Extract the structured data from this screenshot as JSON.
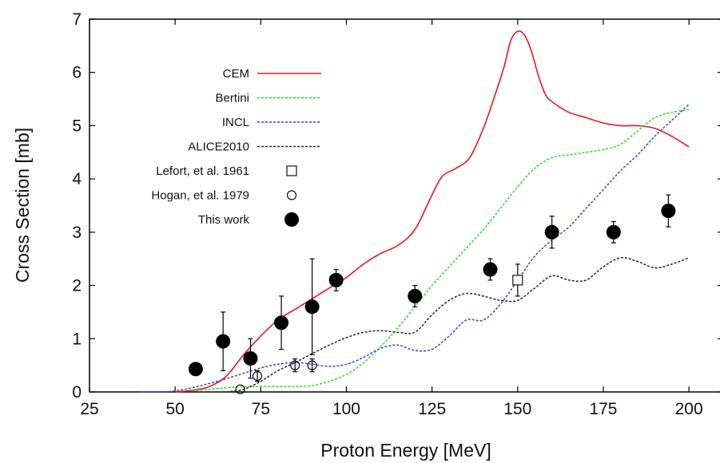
{
  "chart_data": {
    "type": "line",
    "xlabel": "Proton Energy [MeV]",
    "ylabel": "Cross Section [mb]",
    "xlim": [
      25,
      210
    ],
    "ylim": [
      0,
      7
    ],
    "xticks": [
      25,
      50,
      75,
      100,
      125,
      150,
      175,
      200
    ],
    "yticks": [
      0,
      1,
      2,
      3,
      4,
      5,
      6,
      7
    ],
    "grid": false,
    "legend_placement": "upper-left",
    "series": [
      {
        "name": "CEM",
        "kind": "line",
        "color": "#e31a1c",
        "dash": "solid",
        "x": [
          50,
          55,
          60,
          65,
          70,
          75,
          80,
          85,
          90,
          95,
          100,
          105,
          110,
          115,
          120,
          125,
          128,
          132,
          136,
          140,
          143,
          146,
          148,
          150,
          152,
          154,
          156,
          158,
          160,
          165,
          170,
          175,
          180,
          185,
          190,
          195,
          200
        ],
        "y": [
          0.0,
          0.03,
          0.1,
          0.3,
          0.7,
          1.05,
          1.35,
          1.55,
          1.75,
          1.95,
          2.15,
          2.4,
          2.6,
          2.75,
          3.05,
          3.7,
          4.05,
          4.2,
          4.4,
          4.95,
          5.5,
          6.1,
          6.6,
          6.77,
          6.7,
          6.4,
          5.95,
          5.6,
          5.45,
          5.25,
          5.15,
          5.05,
          5.0,
          5.0,
          4.95,
          4.8,
          4.6
        ]
      },
      {
        "name": "Bertini",
        "kind": "line",
        "color": "#22dd22",
        "dash": "dotted",
        "x": [
          55,
          60,
          65,
          70,
          75,
          80,
          85,
          90,
          95,
          100,
          105,
          110,
          115,
          120,
          125,
          130,
          135,
          140,
          145,
          150,
          155,
          160,
          165,
          170,
          175,
          180,
          185,
          190,
          195,
          200
        ],
        "y": [
          0.02,
          0.05,
          0.08,
          0.1,
          0.1,
          0.1,
          0.1,
          0.12,
          0.2,
          0.33,
          0.55,
          0.85,
          1.2,
          1.6,
          2.0,
          2.35,
          2.7,
          3.05,
          3.45,
          3.85,
          4.2,
          4.4,
          4.45,
          4.5,
          4.55,
          4.65,
          4.9,
          5.15,
          5.25,
          5.3
        ]
      },
      {
        "name": "INCL",
        "kind": "line",
        "color": "#3344dd",
        "dash": "dotted",
        "x": [
          40,
          45,
          50,
          55,
          60,
          65,
          70,
          75,
          80,
          85,
          90,
          95,
          100,
          105,
          110,
          115,
          120,
          125,
          130,
          135,
          140,
          145,
          150,
          155,
          160,
          165,
          170,
          175,
          180,
          185,
          190,
          195,
          200
        ],
        "y": [
          0.0,
          0.0,
          0.02,
          0.08,
          0.16,
          0.25,
          0.35,
          0.45,
          0.52,
          0.55,
          0.52,
          0.48,
          0.52,
          0.65,
          0.82,
          0.88,
          0.78,
          0.8,
          1.05,
          1.35,
          1.35,
          1.65,
          2.1,
          2.55,
          2.85,
          3.1,
          3.45,
          3.8,
          4.15,
          4.45,
          4.8,
          5.1,
          5.4
        ]
      },
      {
        "name": "ALICE2010",
        "kind": "line",
        "color": "#222222",
        "dash": "dotted",
        "x": [
          65,
          70,
          75,
          80,
          85,
          90,
          95,
          100,
          105,
          110,
          115,
          120,
          125,
          130,
          135,
          140,
          145,
          150,
          155,
          160,
          165,
          170,
          175,
          180,
          185,
          190,
          195,
          200
        ],
        "y": [
          0.0,
          0.05,
          0.2,
          0.4,
          0.55,
          0.72,
          0.88,
          1.02,
          1.12,
          1.15,
          1.12,
          1.12,
          1.45,
          1.72,
          1.85,
          1.8,
          1.72,
          1.72,
          1.95,
          2.18,
          2.1,
          2.1,
          2.35,
          2.52,
          2.45,
          2.33,
          2.4,
          2.52
        ]
      },
      {
        "name": "Lefort, et al. 1961",
        "kind": "points",
        "marker": "open-square",
        "color": "#111111",
        "x": [
          150
        ],
        "y": [
          2.1
        ],
        "yerr": [
          0.3
        ]
      },
      {
        "name": "Hogan, et al. 1979",
        "kind": "points",
        "marker": "open-circle",
        "color": "#111111",
        "x": [
          69,
          74,
          85,
          90
        ],
        "y": [
          0.05,
          0.3,
          0.5,
          0.5
        ],
        "yerr": [
          0.0,
          0.1,
          0.12,
          0.12
        ]
      },
      {
        "name": "This work",
        "kind": "points",
        "marker": "filled-circle",
        "color": "#000000",
        "x": [
          56,
          64,
          72,
          81,
          90,
          97,
          120,
          142,
          160,
          178,
          194
        ],
        "y": [
          0.43,
          0.95,
          0.63,
          1.3,
          1.6,
          2.1,
          1.8,
          2.3,
          3.0,
          3.0,
          3.4
        ],
        "yerr": [
          0.0,
          0.55,
          0.37,
          0.5,
          0.9,
          0.2,
          0.2,
          0.2,
          0.3,
          0.2,
          0.3
        ]
      }
    ]
  }
}
